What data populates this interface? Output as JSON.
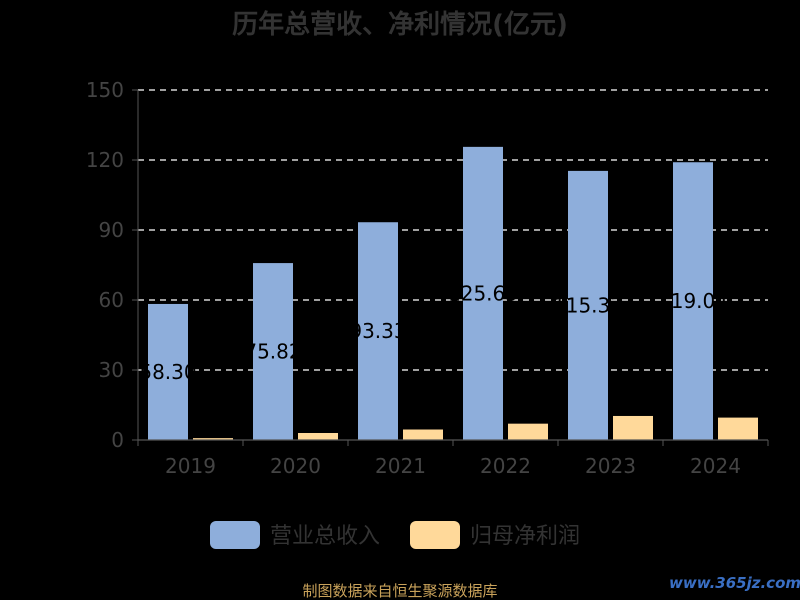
{
  "chart_data": {
    "type": "bar",
    "title": "历年总营收、净利情况(亿元)",
    "categories": [
      "2019",
      "2020",
      "2021",
      "2022",
      "2023",
      "2024"
    ],
    "series": [
      {
        "name": "营业总收入",
        "color": "#8eaedb",
        "values": [
          58.3,
          75.82,
          93.33,
          125.63,
          115.33,
          119.04
        ],
        "labels": [
          "58.30",
          "75.82",
          "93.33",
          "125.63",
          "115.33",
          "119.04"
        ]
      },
      {
        "name": "归母净利润",
        "color": "#ffd99a",
        "values": [
          0.8,
          3.0,
          4.5,
          7.0,
          10.3,
          9.6
        ]
      }
    ],
    "yticks": [
      "0",
      "30",
      "60",
      "90",
      "120",
      "150"
    ],
    "ylim": [
      0,
      150
    ],
    "grid": true,
    "legend": "bottom"
  },
  "source": "制图数据来自恒生聚源数据库",
  "watermark": "www.365jz.com"
}
